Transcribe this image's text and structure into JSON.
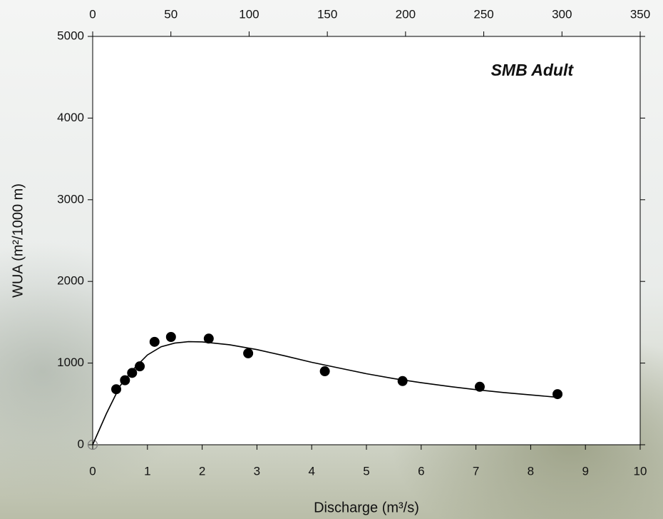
{
  "chart_data": {
    "type": "scatter",
    "annotation": "SMB Adult",
    "xlabel": "Discharge (m³/s)",
    "ylabel": "WUA (m²/1000 m)",
    "xlim": [
      0,
      10
    ],
    "xticks": [
      0,
      1,
      2,
      3,
      4,
      5,
      6,
      7,
      8,
      9,
      10
    ],
    "x2lim": [
      0,
      350
    ],
    "x2ticks": [
      0,
      50,
      100,
      150,
      200,
      250,
      300,
      350
    ],
    "ylim": [
      0,
      5000
    ],
    "yticks": [
      0,
      1000,
      2000,
      3000,
      4000,
      5000
    ],
    "series": [
      {
        "type": "scatter",
        "color": "#000000",
        "filled": true,
        "x": [
          0.43,
          0.59,
          0.72,
          0.86,
          1.13,
          1.43,
          2.12,
          2.84,
          4.24,
          5.66,
          7.07,
          8.49
        ],
        "values": [
          680,
          790,
          880,
          960,
          1260,
          1320,
          1300,
          1120,
          900,
          780,
          710,
          620
        ]
      },
      {
        "type": "scatter",
        "color": "#808080",
        "filled": false,
        "x": [
          0
        ],
        "values": [
          0
        ]
      },
      {
        "type": "line",
        "color": "#000000",
        "x": [
          0,
          0.25,
          0.5,
          0.75,
          1,
          1.25,
          1.5,
          1.75,
          2,
          2.5,
          3,
          3.5,
          4,
          4.5,
          5,
          5.5,
          6,
          6.5,
          7,
          7.5,
          8,
          8.5
        ],
        "values": [
          0,
          380,
          720,
          930,
          1100,
          1200,
          1245,
          1262,
          1260,
          1225,
          1165,
          1090,
          1010,
          940,
          870,
          810,
          760,
          715,
          675,
          640,
          610,
          580
        ]
      }
    ]
  }
}
